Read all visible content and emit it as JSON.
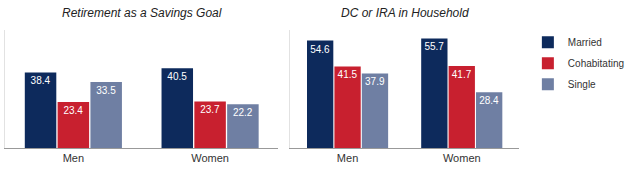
{
  "chart_data": [
    {
      "type": "bar",
      "title": "Retirement as a Savings Goal",
      "categories": [
        "Men",
        "Women"
      ],
      "series": [
        {
          "name": "Married",
          "color": "#0d2a5c",
          "values": [
            38.4,
            40.5
          ]
        },
        {
          "name": "Cohabitating",
          "color": "#c8202f",
          "values": [
            23.4,
            23.7
          ]
        },
        {
          "name": "Single",
          "color": "#6f7fa3",
          "values": [
            33.5,
            22.2
          ]
        }
      ],
      "ylim": [
        0,
        60
      ],
      "grid": false,
      "data_labels": true,
      "tick_labels": "x",
      "legend": "top right"
    },
    {
      "type": "bar",
      "title": "DC or IRA in Household",
      "categories": [
        "Men",
        "Women"
      ],
      "series": [
        {
          "name": "Married",
          "color": "#0d2a5c",
          "values": [
            54.6,
            55.7
          ]
        },
        {
          "name": "Cohabitating",
          "color": "#c8202f",
          "values": [
            41.5,
            41.7
          ]
        },
        {
          "name": "Single",
          "color": "#6f7fa3",
          "values": [
            37.9,
            28.4
          ]
        }
      ],
      "ylim": [
        0,
        60
      ],
      "grid": false,
      "data_labels": true,
      "tick_labels": "x",
      "legend": "top right"
    }
  ]
}
